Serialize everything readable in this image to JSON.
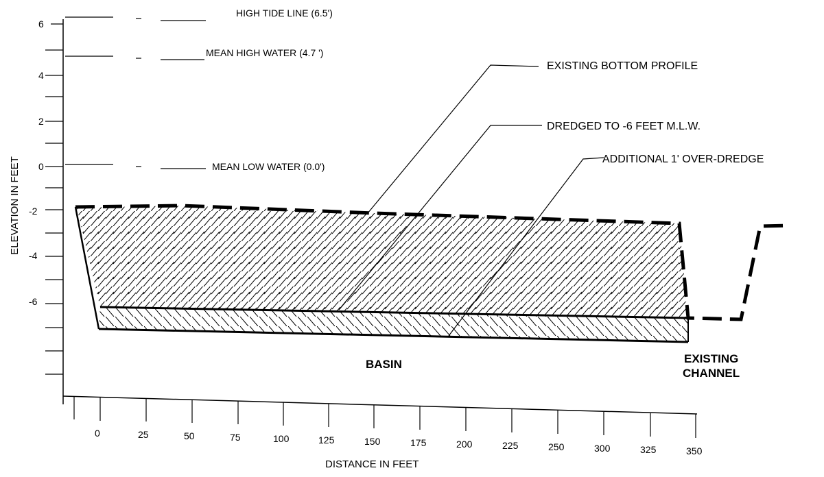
{
  "axes": {
    "y_title": "ELEVATION IN FEET",
    "x_title": "DISTANCE IN FEET",
    "y_ticks": [
      "6",
      "4",
      "2",
      "0",
      "-2",
      "-4",
      "-6"
    ],
    "x_ticks": [
      "0",
      "25",
      "50",
      "75",
      "100",
      "125",
      "150",
      "175",
      "200",
      "225",
      "250",
      "300",
      "325",
      "350"
    ]
  },
  "water_levels": {
    "high_tide": "HIGH TIDE LINE (6.5')",
    "mean_high": "MEAN HIGH WATER (4.7 ')",
    "mean_low": "MEAN LOW WATER (0.0')"
  },
  "callouts": {
    "existing_bottom": "EXISTING BOTTOM PROFILE",
    "dredged": "DREDGED TO -6 FEET M.L.W.",
    "over_dredge": "ADDITIONAL 1' OVER-DREDGE"
  },
  "regions": {
    "basin": "BASIN",
    "existing_channel_line1": "EXISTING",
    "existing_channel_line2": "CHANNEL"
  }
}
